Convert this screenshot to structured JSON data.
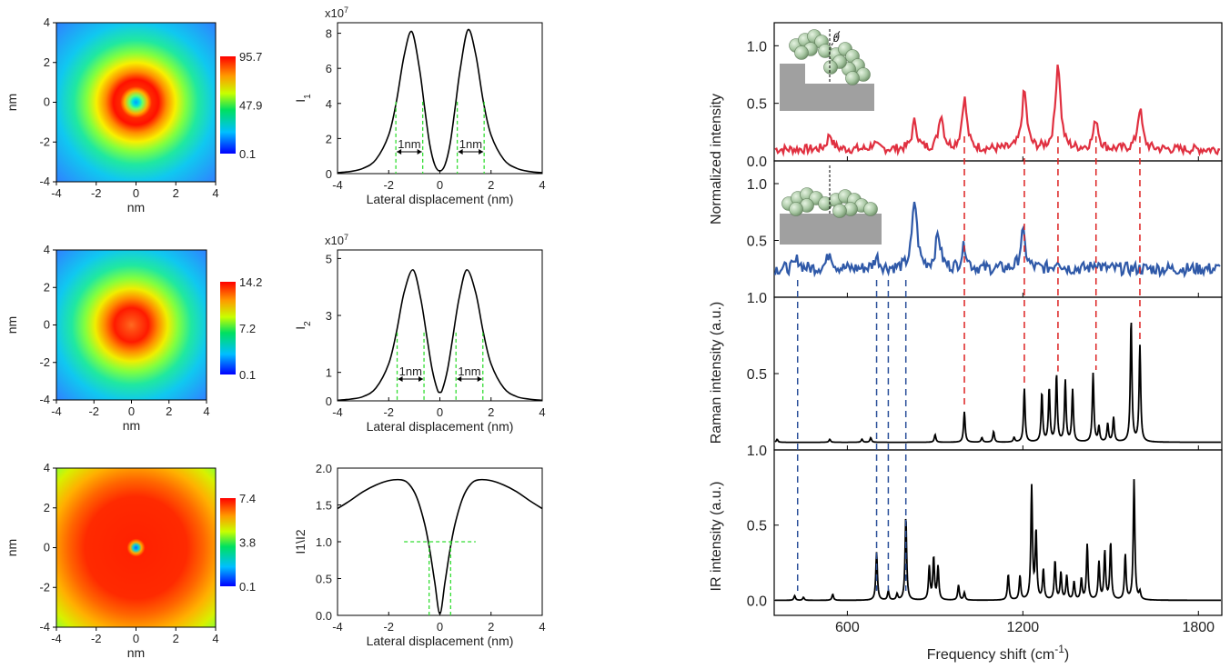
{
  "colors": {
    "red_trace": "#e03040",
    "blue_trace": "#2f59a8",
    "black_trace": "#000000",
    "green_guides": "#33dd33",
    "red_dash": "#dd2222",
    "blue_dash": "#2a4f9a",
    "substrate_gray": "#a0a0a0",
    "molecule_green": "#a8c7a3"
  },
  "chart_data": [
    {
      "id": "map1",
      "type": "heatmap",
      "xlabel": "nm",
      "ylabel": "nm",
      "xticks": [
        "-4",
        "-2",
        "0",
        "2",
        "4"
      ],
      "yticks": [
        "4",
        "2",
        "0",
        "-2",
        "-4"
      ],
      "xlim": [
        -4,
        4
      ],
      "ylim": [
        -4,
        4
      ],
      "colorbar_ticks": [
        "95.7",
        "47.9",
        "0.1"
      ],
      "colorbar_range": [
        0.1,
        95.7
      ],
      "profile": "ring",
      "ring_radius_nm": 1.1,
      "center_minimum": true
    },
    {
      "id": "map2",
      "type": "heatmap",
      "xlabel": "nm",
      "ylabel": "nm",
      "xticks": [
        "-4",
        "-2",
        "0",
        "2",
        "4"
      ],
      "yticks": [
        "4",
        "2",
        "0",
        "-2",
        "-4"
      ],
      "xlim": [
        -4,
        4
      ],
      "ylim": [
        -4,
        4
      ],
      "colorbar_ticks": [
        "14.2",
        "7.2",
        "0.1"
      ],
      "colorbar_range": [
        0.1,
        14.2
      ],
      "profile": "ring",
      "ring_radius_nm": 1.0,
      "center_minimum": false
    },
    {
      "id": "map3",
      "type": "heatmap",
      "xlabel": "nm",
      "ylabel": "nm",
      "xticks": [
        "-4",
        "-2",
        "0",
        "2",
        "4"
      ],
      "yticks": [
        "4",
        "2",
        "0",
        "-2",
        "-4"
      ],
      "xlim": [
        -4,
        4
      ],
      "ylim": [
        -4,
        4
      ],
      "colorbar_ticks": [
        "7.4",
        "3.8",
        "0.1"
      ],
      "colorbar_range": [
        0.1,
        7.4
      ],
      "profile": "plateau",
      "center_minimum": true
    },
    {
      "id": "profile1",
      "type": "line",
      "xlabel": "Lateral displacement (nm)",
      "ylabel": "I1",
      "exponent_label": "x10^7",
      "xlim": [
        -4,
        4
      ],
      "ylim": [
        0,
        8.6
      ],
      "xticks": [
        "-4",
        "-2",
        "0",
        "2",
        "4"
      ],
      "yticks": [
        "0",
        "2",
        "4",
        "6",
        "8"
      ],
      "peaks": [
        {
          "x": -1.1,
          "y": 8.1
        },
        {
          "x": 1.1,
          "y": 8.2
        }
      ],
      "fwhm_nm": 1,
      "fwhm_label": "1nm",
      "half_max": 4.1,
      "series": [
        {
          "x": [
            -4,
            -3.5,
            -3,
            -2.5,
            -2,
            -1.7,
            -1.4,
            -1.1,
            -0.8,
            -0.6,
            -0.4,
            -0.2,
            0,
            0.2,
            0.4,
            0.6,
            0.8,
            1.1,
            1.4,
            1.7,
            2,
            2.5,
            3,
            3.5,
            4
          ],
          "y": [
            0.05,
            0.12,
            0.3,
            0.8,
            2.2,
            4.1,
            6.7,
            8.1,
            6.0,
            3.8,
            1.7,
            0.5,
            0.15,
            0.5,
            1.7,
            3.8,
            6.0,
            8.2,
            6.8,
            4.1,
            2.2,
            0.8,
            0.3,
            0.12,
            0.05
          ]
        }
      ]
    },
    {
      "id": "profile2",
      "type": "line",
      "xlabel": "Lateral displacement (nm)",
      "ylabel": "I2",
      "exponent_label": "x10^7",
      "xlim": [
        -4,
        4
      ],
      "ylim": [
        0,
        5.3
      ],
      "xticks": [
        "-4",
        "-2",
        "0",
        "2",
        "4"
      ],
      "yticks": [
        "0",
        "1",
        "3",
        "5"
      ],
      "peaks": [
        {
          "x": -1.05,
          "y": 4.6
        },
        {
          "x": 1.05,
          "y": 4.6
        }
      ],
      "fwhm_nm": 1,
      "fwhm_label": "1nm",
      "half_max": 2.4,
      "series": [
        {
          "x": [
            -4,
            -3.5,
            -3,
            -2.5,
            -2,
            -1.7,
            -1.4,
            -1.05,
            -0.75,
            -0.5,
            -0.3,
            -0.1,
            0,
            0.1,
            0.3,
            0.5,
            0.75,
            1.05,
            1.4,
            1.7,
            2,
            2.5,
            3,
            3.5,
            4
          ],
          "y": [
            0.02,
            0.06,
            0.15,
            0.45,
            1.3,
            2.4,
            3.8,
            4.6,
            3.6,
            2.2,
            1.1,
            0.4,
            0.3,
            0.4,
            1.1,
            2.2,
            3.6,
            4.6,
            3.8,
            2.4,
            1.3,
            0.45,
            0.15,
            0.06,
            0.02
          ]
        }
      ]
    },
    {
      "id": "profile3",
      "type": "line",
      "xlabel": "Lateral displacement (nm)",
      "ylabel": "I1\\I2",
      "xlim": [
        -4,
        4
      ],
      "ylim": [
        0,
        2.0
      ],
      "xticks": [
        "-4",
        "-2",
        "0",
        "2",
        "4"
      ],
      "yticks": [
        "0.0",
        "0.5",
        "1.0",
        "1.5",
        "2.0"
      ],
      "half_max": 1.0,
      "series": [
        {
          "x": [
            -4,
            -3.5,
            -3,
            -2.5,
            -2,
            -1.5,
            -1.2,
            -0.9,
            -0.6,
            -0.4,
            -0.2,
            0,
            0.2,
            0.4,
            0.6,
            0.9,
            1.2,
            1.5,
            2,
            2.5,
            3,
            3.5,
            4
          ],
          "y": [
            1.45,
            1.56,
            1.68,
            1.77,
            1.83,
            1.84,
            1.78,
            1.6,
            1.25,
            0.9,
            0.45,
            0.02,
            0.45,
            0.9,
            1.25,
            1.6,
            1.78,
            1.84,
            1.83,
            1.77,
            1.68,
            1.56,
            1.45
          ]
        }
      ]
    },
    {
      "id": "spectra",
      "type": "line",
      "xlabel": "Frequency shift (cm-1)",
      "xlim": [
        350,
        1880
      ],
      "xticks": [
        "600",
        "1200",
        "1800"
      ],
      "xtick_values": [
        600,
        1200,
        1800
      ],
      "panels": [
        {
          "ylabel": "Normalized intensity",
          "ylim": [
            0,
            1.2
          ],
          "yticks": [
            "0.0",
            "0.5",
            "1.0"
          ],
          "series": [
            {
              "name": "red",
              "baseline": 0.1,
              "noise": 0.05,
              "peaks": [
                [
                  540,
                  0.13
                ],
                [
                  690,
                  0.05
                ],
                [
                  830,
                  0.24
                ],
                [
                  920,
                  0.3
                ],
                [
                  1000,
                  0.44
                ],
                [
                  1205,
                  0.5
                ],
                [
                  1320,
                  0.75
                ],
                [
                  1450,
                  0.26
                ],
                [
                  1600,
                  0.35
                ]
              ]
            }
          ]
        },
        {
          "ylabel": "",
          "ylim": [
            0,
            1.2
          ],
          "yticks": [
            "0.5",
            "1.0"
          ],
          "series": [
            {
              "name": "blue",
              "baseline": 0.25,
              "noise": 0.07,
              "peaks": [
                [
                  430,
                  0.08
                ],
                [
                  540,
                  0.15
                ],
                [
                  700,
                  0.1
                ],
                [
                  830,
                  0.6
                ],
                [
                  910,
                  0.3
                ],
                [
                  1000,
                  0.2
                ],
                [
                  1200,
                  0.32
                ],
                [
                  1320,
                  0.08
                ],
                [
                  1450,
                  0.06
                ]
              ]
            }
          ]
        },
        {
          "ylabel": "Raman intensity (a.u.)",
          "ylim": [
            0,
            1.0
          ],
          "yticks": [
            "1.0",
            "0.5"
          ],
          "series": [
            {
              "name": "raman",
              "baseline": 0.05,
              "peaks": [
                [
                  360,
                  0.02
                ],
                [
                  540,
                  0.02
                ],
                [
                  650,
                  0.02
                ],
                [
                  680,
                  0.03
                ],
                [
                  900,
                  0.05
                ],
                [
                  1000,
                  0.2
                ],
                [
                  1060,
                  0.03
                ],
                [
                  1100,
                  0.07
                ],
                [
                  1170,
                  0.03
                ],
                [
                  1205,
                  0.35
                ],
                [
                  1265,
                  0.32
                ],
                [
                  1290,
                  0.35
                ],
                [
                  1315,
                  0.44
                ],
                [
                  1345,
                  0.4
                ],
                [
                  1370,
                  0.34
                ],
                [
                  1440,
                  0.45
                ],
                [
                  1460,
                  0.1
                ],
                [
                  1490,
                  0.12
                ],
                [
                  1510,
                  0.16
                ],
                [
                  1570,
                  0.8
                ],
                [
                  1600,
                  0.63
                ]
              ]
            }
          ]
        },
        {
          "ylabel": "IR intensity (a.u.)",
          "ylim": [
            -0.1,
            1.0
          ],
          "yticks": [
            "1.0",
            "0.5",
            "0.0"
          ],
          "series": [
            {
              "name": "ir",
              "baseline": 0.0,
              "peaks": [
                [
                  420,
                  0.03
                ],
                [
                  450,
                  0.02
                ],
                [
                  550,
                  0.04
                ],
                [
                  700,
                  0.32
                ],
                [
                  740,
                  0.06
                ],
                [
                  770,
                  0.04
                ],
                [
                  800,
                  0.56
                ],
                [
                  880,
                  0.22
                ],
                [
                  895,
                  0.28
                ],
                [
                  910,
                  0.22
                ],
                [
                  980,
                  0.1
                ],
                [
                  1000,
                  0.05
                ],
                [
                  1150,
                  0.17
                ],
                [
                  1190,
                  0.16
                ],
                [
                  1230,
                  0.75
                ],
                [
                  1245,
                  0.45
                ],
                [
                  1270,
                  0.2
                ],
                [
                  1310,
                  0.26
                ],
                [
                  1330,
                  0.18
                ],
                [
                  1350,
                  0.16
                ],
                [
                  1375,
                  0.12
                ],
                [
                  1400,
                  0.14
                ],
                [
                  1420,
                  0.37
                ],
                [
                  1460,
                  0.25
                ],
                [
                  1480,
                  0.32
                ],
                [
                  1500,
                  0.38
                ],
                [
                  1550,
                  0.3
                ],
                [
                  1580,
                  0.8
                ],
                [
                  1600,
                  0.05
                ]
              ]
            }
          ]
        }
      ],
      "red_dashed_at": [
        1000,
        1205,
        1320,
        1450,
        1600
      ],
      "blue_dashed_at": [
        430,
        700,
        740,
        800
      ],
      "inset_angle_label": "θ"
    }
  ]
}
